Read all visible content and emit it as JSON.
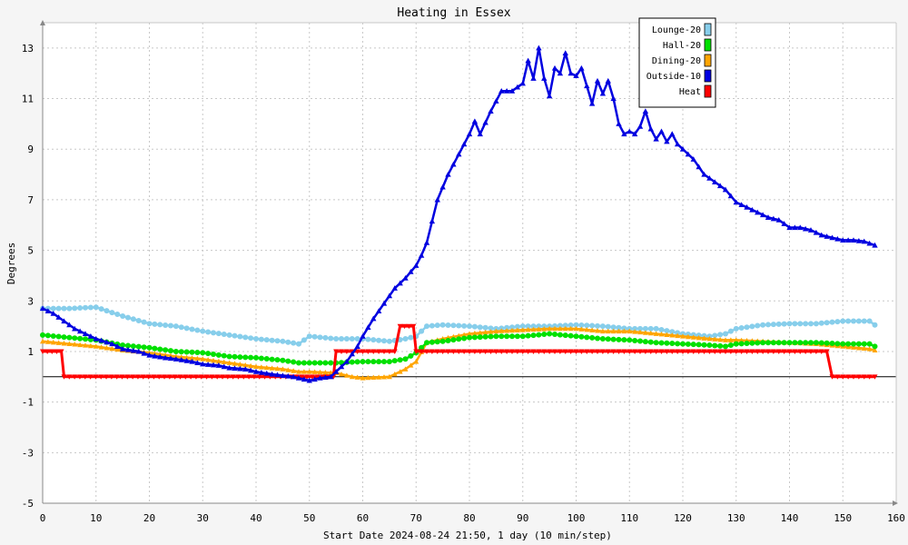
{
  "chart_data": {
    "type": "line",
    "title": "Heating in Essex",
    "xlabel": "Start Date 2024-08-24 21:50, 1 day (10 min/step)",
    "ylabel": "Degrees",
    "xlim": [
      0,
      160
    ],
    "ylim": [
      -5,
      14
    ],
    "x_ticks": [
      "0",
      "10",
      "20",
      "30",
      "40",
      "50",
      "60",
      "70",
      "80",
      "90",
      "100",
      "110",
      "120",
      "130",
      "140",
      "150",
      "160"
    ],
    "y_ticks": [
      "13",
      "11",
      "9",
      "7",
      "5",
      "3",
      "1",
      "-1",
      "-3",
      "-5"
    ],
    "grid": true,
    "legend_position": "top-right",
    "series": [
      {
        "name": "Lounge-20",
        "color": "#87ceeb",
        "marker": "circle",
        "x": [
          0,
          5,
          10,
          15,
          20,
          25,
          30,
          35,
          40,
          45,
          48,
          50,
          55,
          60,
          65,
          68,
          70,
          72,
          75,
          80,
          85,
          90,
          95,
          100,
          105,
          110,
          115,
          120,
          125,
          128,
          130,
          135,
          140,
          145,
          150,
          155,
          156
        ],
        "y": [
          2.7,
          2.7,
          2.75,
          2.4,
          2.1,
          2.0,
          1.8,
          1.65,
          1.5,
          1.4,
          1.3,
          1.6,
          1.5,
          1.5,
          1.4,
          1.5,
          1.6,
          2.0,
          2.05,
          2.0,
          1.9,
          2.0,
          2.0,
          2.05,
          2.0,
          1.9,
          1.9,
          1.7,
          1.6,
          1.7,
          1.9,
          2.05,
          2.1,
          2.1,
          2.2,
          2.2,
          2.05
        ]
      },
      {
        "name": "Hall-20",
        "color": "#00e000",
        "marker": "circle",
        "x": [
          0,
          5,
          10,
          15,
          20,
          25,
          30,
          35,
          40,
          45,
          48,
          50,
          55,
          60,
          65,
          68,
          70,
          72,
          75,
          80,
          85,
          90,
          95,
          100,
          105,
          110,
          115,
          120,
          125,
          128,
          130,
          135,
          140,
          145,
          150,
          155,
          156
        ],
        "y": [
          1.65,
          1.55,
          1.45,
          1.25,
          1.15,
          1.0,
          0.95,
          0.8,
          0.75,
          0.65,
          0.55,
          0.55,
          0.55,
          0.6,
          0.6,
          0.7,
          0.95,
          1.35,
          1.4,
          1.55,
          1.6,
          1.6,
          1.7,
          1.6,
          1.5,
          1.45,
          1.35,
          1.3,
          1.25,
          1.2,
          1.3,
          1.35,
          1.35,
          1.35,
          1.3,
          1.3,
          1.2
        ]
      },
      {
        "name": "Dining-20",
        "color": "#ffa500",
        "marker": "triangle",
        "x": [
          0,
          5,
          10,
          15,
          20,
          25,
          30,
          35,
          40,
          45,
          48,
          50,
          55,
          58,
          60,
          65,
          68,
          70,
          72,
          75,
          80,
          85,
          90,
          95,
          100,
          105,
          110,
          115,
          120,
          125,
          128,
          130,
          135,
          140,
          145,
          150,
          155,
          156
        ],
        "y": [
          1.4,
          1.3,
          1.2,
          1.05,
          0.95,
          0.8,
          0.7,
          0.55,
          0.4,
          0.3,
          0.2,
          0.2,
          0.15,
          0.0,
          -0.05,
          0.0,
          0.3,
          0.6,
          1.35,
          1.5,
          1.7,
          1.8,
          1.85,
          1.9,
          1.9,
          1.8,
          1.8,
          1.7,
          1.6,
          1.5,
          1.45,
          1.45,
          1.4,
          1.35,
          1.3,
          1.2,
          1.1,
          1.05
        ]
      },
      {
        "name": "Outside-10",
        "color": "#0000e0",
        "marker": "triangle",
        "x": [
          0,
          2,
          4,
          6,
          8,
          10,
          13,
          15,
          18,
          20,
          23,
          25,
          28,
          30,
          33,
          35,
          38,
          40,
          43,
          45,
          47,
          50,
          52,
          54,
          55,
          57,
          59,
          60,
          62,
          64,
          66,
          68,
          70,
          71,
          72,
          74,
          76,
          78,
          80,
          81,
          82,
          84,
          86,
          88,
          90,
          91,
          92,
          93,
          94,
          95,
          96,
          97,
          98,
          99,
          100,
          101,
          102,
          103,
          104,
          105,
          106,
          107,
          108,
          109,
          110,
          111,
          112,
          113,
          114,
          115,
          116,
          117,
          118,
          119,
          120,
          122,
          124,
          126,
          128,
          130,
          132,
          134,
          136,
          138,
          140,
          142,
          144,
          146,
          148,
          150,
          152,
          154,
          156
        ],
        "y": [
          2.7,
          2.5,
          2.2,
          1.9,
          1.7,
          1.5,
          1.3,
          1.1,
          1.0,
          0.85,
          0.75,
          0.7,
          0.6,
          0.5,
          0.45,
          0.35,
          0.3,
          0.2,
          0.1,
          0.05,
          0.0,
          -0.15,
          -0.05,
          0.0,
          0.2,
          0.6,
          1.2,
          1.6,
          2.3,
          2.9,
          3.5,
          3.9,
          4.4,
          4.8,
          5.3,
          7.0,
          8.0,
          8.8,
          9.6,
          10.1,
          9.6,
          10.5,
          11.3,
          11.3,
          11.6,
          12.5,
          11.8,
          13.0,
          11.8,
          11.1,
          12.2,
          12.0,
          12.8,
          12.0,
          11.9,
          12.2,
          11.5,
          10.8,
          11.7,
          11.2,
          11.7,
          11.0,
          10.0,
          9.6,
          9.7,
          9.6,
          9.9,
          10.5,
          9.8,
          9.4,
          9.7,
          9.3,
          9.6,
          9.2,
          9.0,
          8.6,
          8.0,
          7.7,
          7.4,
          6.9,
          6.7,
          6.5,
          6.3,
          6.2,
          5.9,
          5.9,
          5.8,
          5.6,
          5.5,
          5.4,
          5.4,
          5.35,
          5.2
        ]
      },
      {
        "name": "Heat",
        "color": "#ff0000",
        "marker": "triangle-down",
        "x": [
          0,
          3.5,
          4,
          54.5,
          55,
          66,
          67,
          69.5,
          70,
          147,
          148,
          156
        ],
        "y": [
          1,
          1,
          0,
          0,
          1,
          1,
          2,
          2,
          1,
          1,
          0,
          0
        ]
      }
    ]
  }
}
